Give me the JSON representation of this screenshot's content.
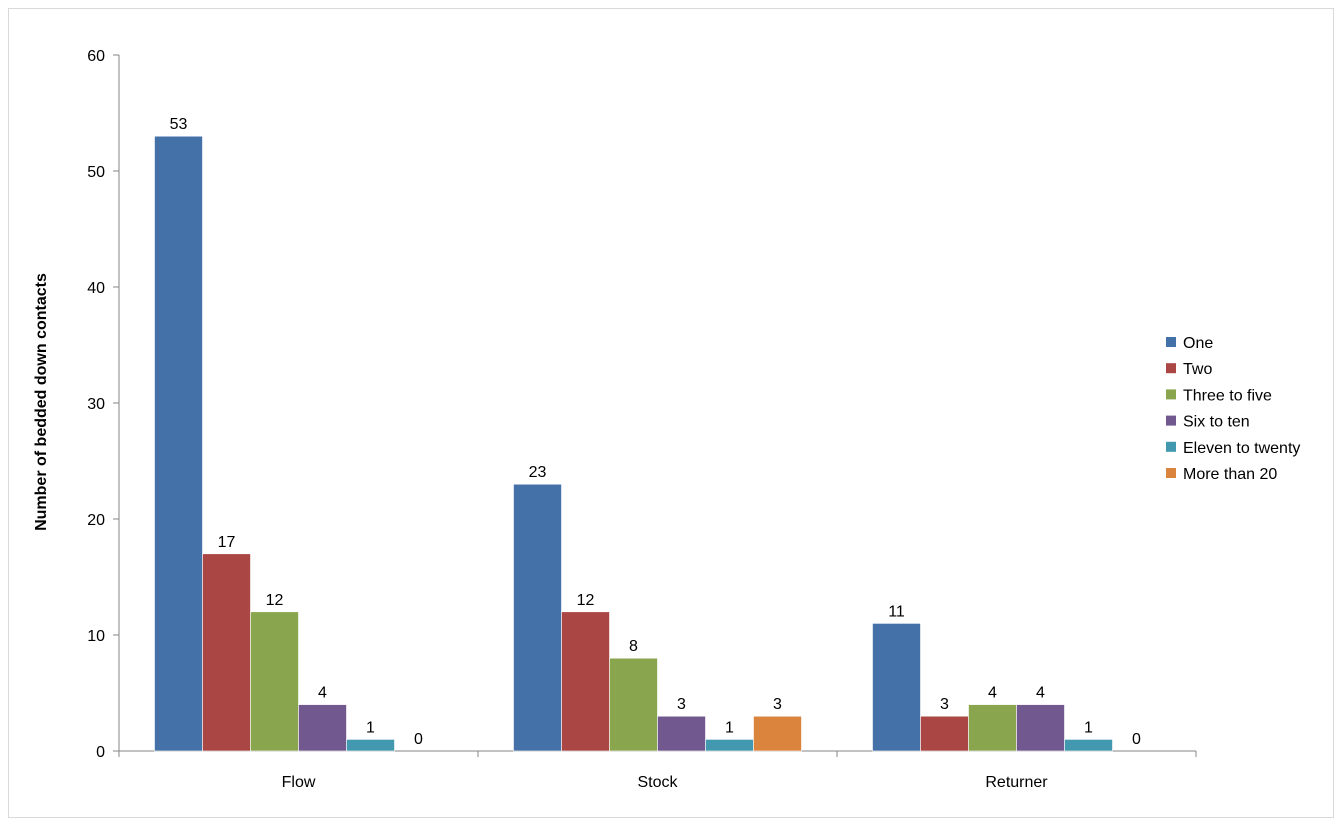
{
  "chart_data": {
    "type": "bar",
    "title": "",
    "xlabel": "",
    "ylabel": "Number of bedded down contacts",
    "categories": [
      "Flow",
      "Stock",
      "Returner"
    ],
    "ylim": [
      0,
      60
    ],
    "yticks": [
      0,
      10,
      20,
      30,
      40,
      50,
      60
    ],
    "grid": false,
    "legend_position": "right",
    "series": [
      {
        "name": "One",
        "color": "#4472a8",
        "values": [
          53,
          23,
          11
        ]
      },
      {
        "name": "Two",
        "color": "#aa4643",
        "values": [
          17,
          12,
          3
        ]
      },
      {
        "name": "Three to five",
        "color": "#89a54e",
        "values": [
          12,
          8,
          4
        ]
      },
      {
        "name": "Six to ten",
        "color": "#71588f",
        "values": [
          4,
          3,
          4
        ]
      },
      {
        "name": "Eleven to twenty",
        "color": "#4198af",
        "values": [
          1,
          1,
          1
        ]
      },
      {
        "name": "More than 20",
        "color": "#db843d",
        "values": [
          0,
          3,
          0
        ]
      }
    ]
  }
}
